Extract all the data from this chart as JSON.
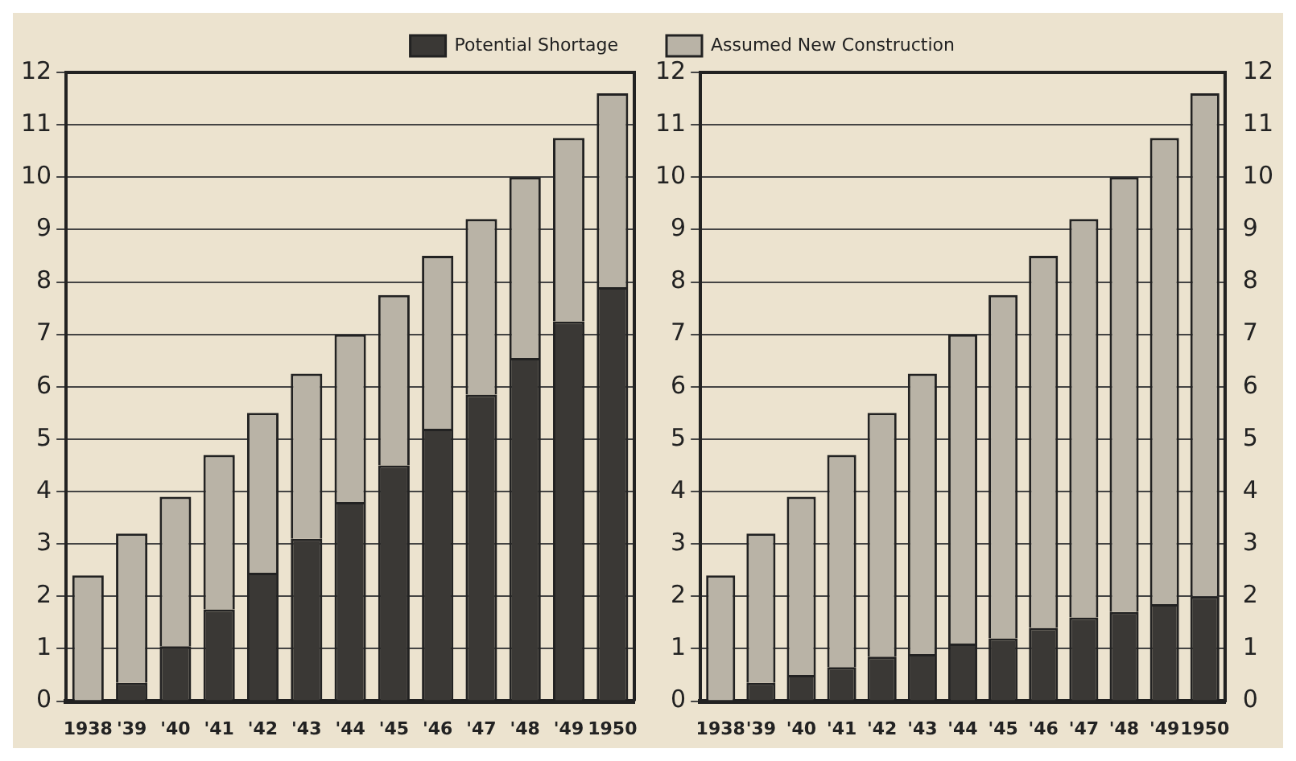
{
  "chart_data": [
    {
      "type": "bar",
      "stacked": true,
      "categories": [
        "1938",
        "'39",
        "'40",
        "'41",
        "'42",
        "'43",
        "'44",
        "'45",
        "'46",
        "'47",
        "'48",
        "'49",
        "1950"
      ],
      "ylim": [
        0,
        12
      ],
      "yticks": [
        0,
        1,
        2,
        3,
        4,
        5,
        6,
        7,
        8,
        9,
        10,
        11,
        12
      ],
      "grid": "y",
      "legend": "top right",
      "series": [
        {
          "name": "Potential Shortage",
          "color": "#3a3835",
          "values": [
            0,
            0.35,
            1.05,
            1.75,
            2.45,
            3.1,
            3.8,
            4.5,
            5.2,
            5.85,
            6.55,
            7.25,
            7.9
          ]
        },
        {
          "color": "#b9b3a6",
          "values": [
            2.4,
            2.85,
            2.85,
            2.95,
            3.05,
            3.15,
            3.2,
            3.25,
            3.3,
            3.35,
            3.45,
            3.5,
            3.7
          ]
        }
      ]
    },
    {
      "type": "bar",
      "stacked": true,
      "categories": [
        "1938",
        "'39",
        "'40",
        "'41",
        "'42",
        "'43",
        "'44",
        "'45",
        "'46",
        "'47",
        "'48",
        "'49",
        "1950"
      ],
      "ylim": [
        0,
        12
      ],
      "yticks": [
        0,
        1,
        2,
        3,
        4,
        5,
        6,
        7,
        8,
        9,
        10,
        11,
        12
      ],
      "y2lim": [
        0,
        12
      ],
      "y2ticks": [
        0,
        1,
        2,
        3,
        4,
        5,
        6,
        7,
        8,
        9,
        10,
        11,
        12
      ],
      "grid": "y",
      "legend": "top left",
      "series": [
        {
          "color": "#3a3835",
          "values": [
            0,
            0.35,
            0.5,
            0.65,
            0.85,
            0.9,
            1.1,
            1.2,
            1.4,
            1.6,
            1.7,
            1.85,
            2.0
          ]
        },
        {
          "name": "Assumed New Construction",
          "color": "#b9b3a6",
          "values": [
            2.4,
            2.85,
            3.4,
            4.05,
            4.65,
            5.35,
            5.9,
            6.55,
            7.1,
            7.6,
            8.3,
            8.9,
            9.6
          ]
        }
      ]
    }
  ]
}
